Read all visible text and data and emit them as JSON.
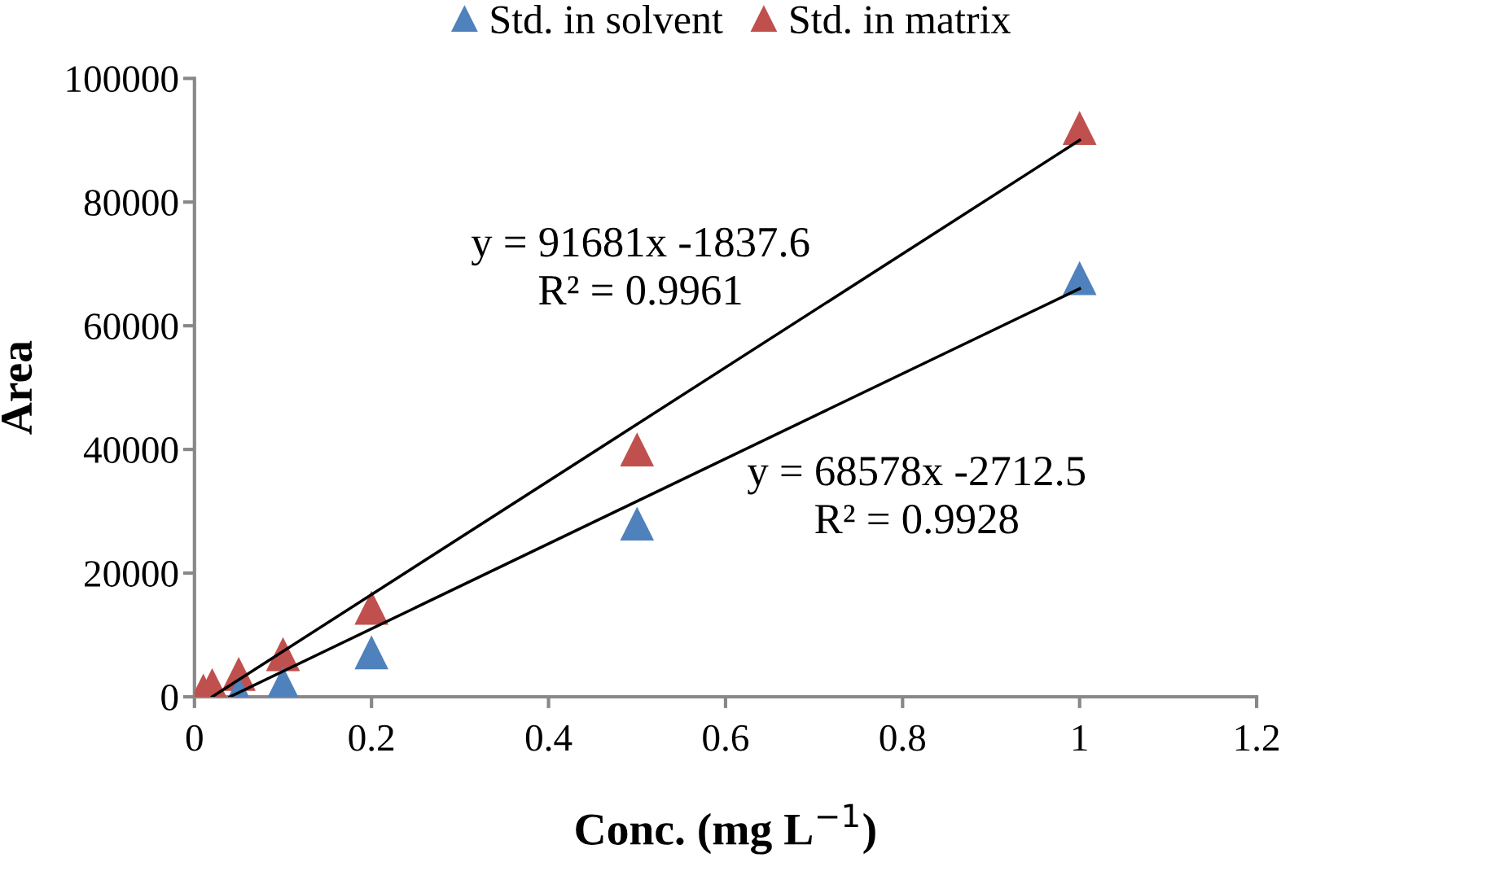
{
  "chart_data": {
    "type": "scatter",
    "xlabel": "Conc. (mg L$^{−1}$)",
    "ylabel": "Area",
    "xlim": [
      0,
      1.2
    ],
    "xticks": [
      0,
      0.2,
      0.4,
      0.6,
      0.8,
      1,
      1.2
    ],
    "ylim": [
      0,
      100000
    ],
    "yticks": [
      0,
      20000,
      40000,
      60000,
      80000,
      100000
    ],
    "grid": false,
    "legend": "top",
    "marker": "triangle",
    "series": [
      {
        "name": "Std. in solvent",
        "color": "#4f81bd",
        "x": [
          0.05,
          0.1,
          0.2,
          0.5,
          1
        ],
        "values": [
          600,
          2200,
          7200,
          28000,
          67700
        ]
      },
      {
        "name": "Std. in matrix",
        "color": "#c0504d",
        "x": [
          0.01,
          0.02,
          0.05,
          0.1,
          0.2,
          0.5,
          1
        ],
        "values": [
          1000,
          1900,
          3700,
          6900,
          14400,
          40000,
          92000
        ]
      },
      {
        "type": "line",
        "color": "#000000",
        "marker": "none",
        "x": [
          0.02,
          1
        ],
        "values": [
          0,
          90000
        ]
      },
      {
        "type": "line",
        "color": "#000000",
        "marker": "none",
        "x": [
          0.04,
          1
        ],
        "values": [
          0,
          66000
        ]
      }
    ],
    "annotations": [
      "y = 91681x -1837.6\nR² = 0.9961",
      "y = 68578x -2712.5\nR² = 0.9928"
    ]
  }
}
